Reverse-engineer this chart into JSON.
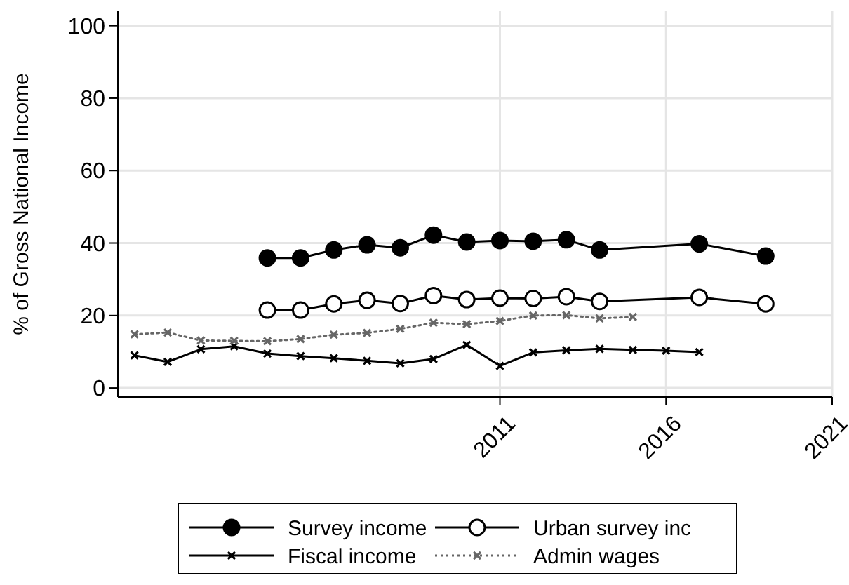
{
  "chart_data": {
    "type": "line",
    "ylabel": "% of Gross National Income",
    "xlim": [
      1999.5,
      2021
    ],
    "xticks": [
      2011,
      2016,
      2021
    ],
    "ylim": [
      -2.5,
      104
    ],
    "yticks": [
      0,
      20,
      40,
      60,
      80,
      100
    ],
    "grid": true,
    "legend": "bottom",
    "series": [
      {
        "name": "Survey income",
        "color": "#000000",
        "marker": "circle",
        "line_style": "solid",
        "x": [
          2004,
          2005,
          2006,
          2007,
          2008,
          2009,
          2010,
          2011,
          2012,
          2013,
          2014,
          2017,
          2019
        ],
        "values": [
          35.9,
          35.9,
          38.1,
          39.5,
          38.7,
          42.2,
          40.3,
          40.7,
          40.5,
          40.9,
          38.1,
          39.8,
          36.4
        ]
      },
      {
        "name": "Urban survey inc",
        "color": "#000000",
        "marker": "circle",
        "line_style": "solid",
        "x": [
          2004,
          2005,
          2006,
          2007,
          2008,
          2009,
          2010,
          2011,
          2012,
          2013,
          2014,
          2017,
          2019
        ],
        "values": [
          21.5,
          21.5,
          23.2,
          24.2,
          23.3,
          25.5,
          24.4,
          24.8,
          24.7,
          25.2,
          23.9,
          25.0,
          23.2
        ]
      },
      {
        "name": "Fiscal income",
        "color": "#000000",
        "marker": "cross",
        "line_style": "solid",
        "x": [
          2000,
          2001,
          2002,
          2003,
          2004,
          2005,
          2006,
          2007,
          2008,
          2009,
          2010,
          2011,
          2012,
          2013,
          2014,
          2015,
          2016,
          2017
        ],
        "values": [
          9.0,
          7.2,
          10.7,
          11.5,
          9.5,
          8.8,
          8.2,
          7.5,
          6.8,
          8.0,
          11.9,
          6.1,
          9.8,
          10.4,
          10.8,
          10.5,
          10.3,
          9.9
        ]
      },
      {
        "name": "Admin wages",
        "color": "#666666",
        "marker": "cross",
        "line_style": "dotted",
        "x": [
          2000,
          2001,
          2002,
          2003,
          2004,
          2005,
          2006,
          2007,
          2008,
          2009,
          2010,
          2011,
          2012,
          2013,
          2014,
          2015
        ],
        "values": [
          14.8,
          15.3,
          13.1,
          13.0,
          12.9,
          13.5,
          14.7,
          15.2,
          16.3,
          18.0,
          17.6,
          18.5,
          20.0,
          20.1,
          19.2,
          19.6
        ]
      }
    ]
  }
}
